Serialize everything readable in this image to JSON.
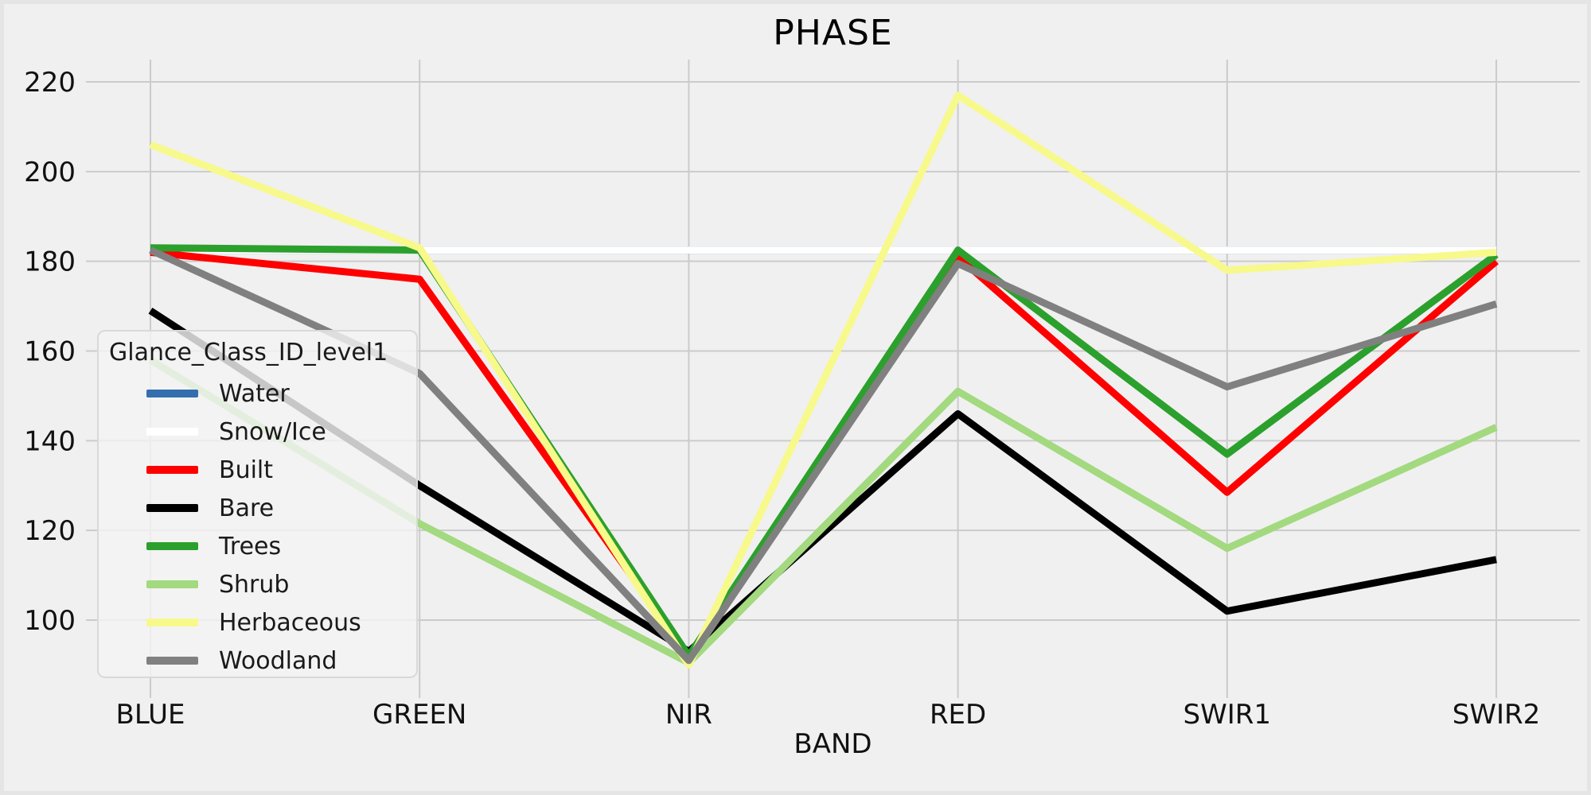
{
  "chart_data": {
    "type": "line",
    "title": "PHASE",
    "xlabel": "BAND",
    "ylabel": "",
    "categories": [
      "BLUE",
      "GREEN",
      "NIR",
      "RED",
      "SWIR1",
      "SWIR2"
    ],
    "yticks": [
      100,
      120,
      140,
      160,
      180,
      200,
      220
    ],
    "ylim": [
      88,
      227
    ],
    "grid": true,
    "legend_title": "Glance_Class_ID_level1",
    "legend_position": "center left",
    "colors": {
      "background": "#f0f0f0",
      "grid": "#cbcbcb",
      "text": "#111111"
    },
    "series": [
      {
        "name": "Water",
        "color": "#336fae",
        "values": [
          182.5,
          182.5,
          182.5,
          182.5,
          182.5,
          182.5
        ]
      },
      {
        "name": "Snow/Ice",
        "color": "#ffffff",
        "values": [
          182.5,
          182.5,
          182.5,
          182.5,
          182.5,
          182.5
        ]
      },
      {
        "name": "Built",
        "color": "#fe0000",
        "values": [
          182,
          176,
          92,
          181,
          128.5,
          180
        ]
      },
      {
        "name": "Bare",
        "color": "#000000",
        "values": [
          169,
          130,
          93,
          146,
          102,
          113.5
        ]
      },
      {
        "name": "Trees",
        "color": "#2ca02c",
        "values": [
          183,
          182.5,
          92,
          182.5,
          137,
          181.5
        ]
      },
      {
        "name": "Shrub",
        "color": "#a3d97f",
        "values": [
          158,
          121.5,
          90.5,
          151,
          116,
          143
        ]
      },
      {
        "name": "Herbaceous",
        "color": "#f7f98b",
        "values": [
          206,
          183,
          90,
          217,
          178,
          182
        ]
      },
      {
        "name": "Woodland",
        "color": "#808080",
        "values": [
          182.5,
          155,
          91,
          179.5,
          152,
          170.5
        ]
      }
    ]
  }
}
